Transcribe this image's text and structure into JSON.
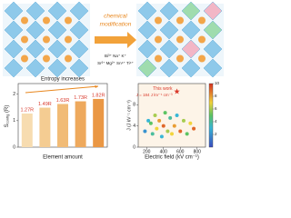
{
  "illustration": {
    "arrow_text": [
      "chemical",
      "modification"
    ],
    "ions": [
      "Bi³⁺ Na⁺ K⁺",
      "Sr²⁺ Mg²⁺ Sn⁴⁺ Ti⁴⁺"
    ]
  },
  "chart_data": [
    {
      "type": "bar",
      "annotation": "Entropy increases",
      "y_label": [
        "S",
        "config",
        " (R)"
      ],
      "x_label": "Element amount",
      "categories": [
        null,
        null,
        null,
        null,
        null
      ],
      "values": [
        1.27,
        1.49,
        1.63,
        1.73,
        1.82
      ],
      "value_labels": [
        "1.27R",
        "1.49R",
        "1.63R",
        "1.73R",
        "1.82R"
      ],
      "colors": [
        "#f7dcb0",
        "#f4cc92",
        "#f1bb76",
        "#eea95d",
        "#ea9744"
      ],
      "label_color": "#d9392b",
      "ylim": [
        0,
        2.4
      ],
      "yticks": [
        0,
        1,
        2
      ]
    },
    {
      "type": "scatter",
      "x_label": "Electric field (kV cm⁻¹)",
      "y_label": "J (J kV⁻¹ cm⁻³)",
      "x": [
        180,
        220,
        250,
        270,
        300,
        320,
        350,
        380,
        400,
        420,
        450,
        480,
        500,
        530,
        560,
        600,
        640,
        680,
        720,
        760
      ],
      "y": [
        3,
        5,
        4.5,
        2.5,
        6,
        3.5,
        5,
        2,
        4,
        6.5,
        3,
        5.5,
        2.5,
        4,
        6,
        3,
        5,
        2.5,
        4.5,
        3.5
      ],
      "c": [
        2,
        3,
        5,
        4,
        6,
        7,
        8,
        3,
        9,
        5,
        6,
        4,
        7,
        8,
        3,
        9,
        6,
        5,
        7,
        9
      ],
      "highlight": {
        "x": 560,
        "y": 10.5,
        "label": "This work",
        "annotation": "J = 184 J kV⁻¹ cm⁻³",
        "color": "#d9392b"
      },
      "xlim": [
        100,
        900
      ],
      "xticks": [
        200,
        400,
        600,
        800
      ],
      "ylim": [
        0,
        12
      ],
      "yticks": [
        0,
        4,
        8
      ],
      "clim": [
        0,
        10
      ],
      "cticks": [
        2,
        4,
        6,
        8,
        10
      ]
    }
  ]
}
